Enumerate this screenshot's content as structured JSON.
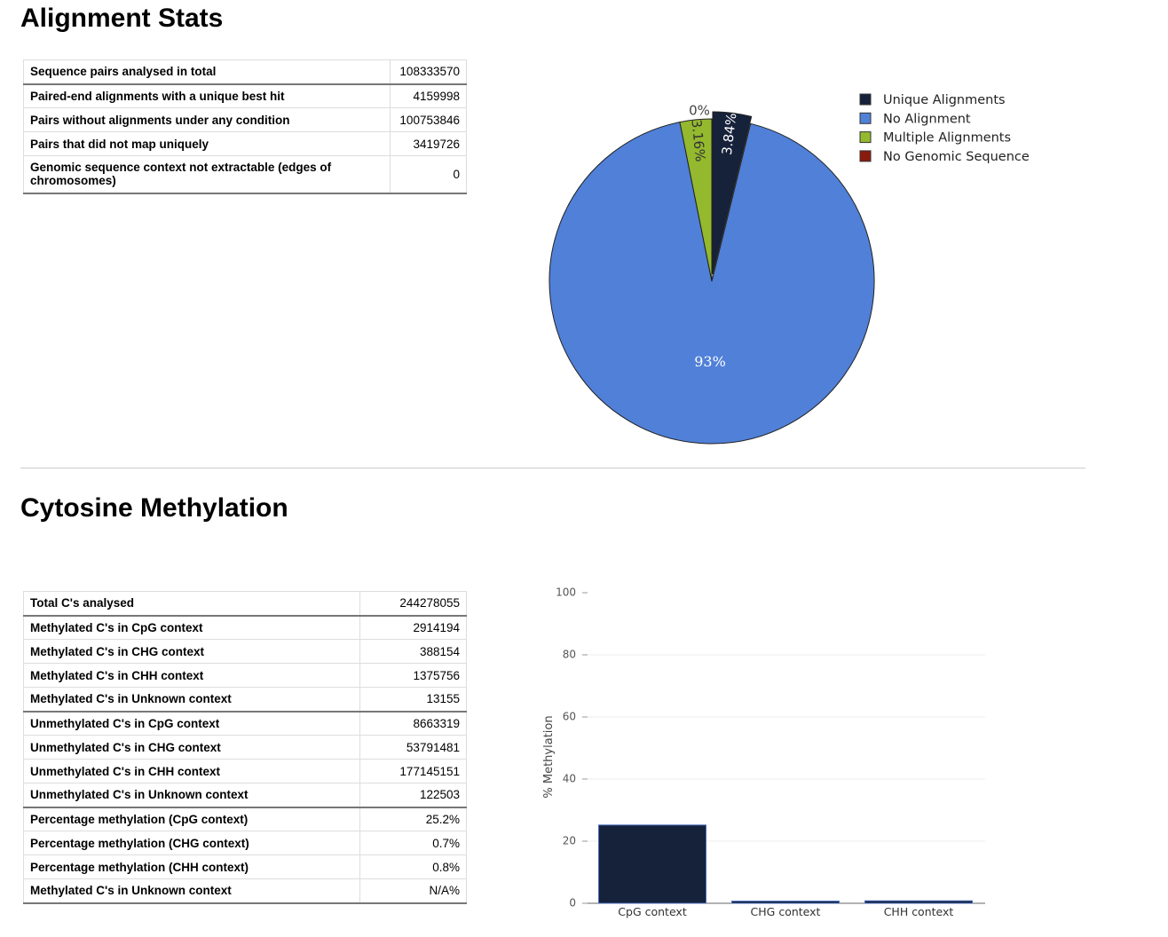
{
  "alignment": {
    "title": "Alignment Stats",
    "rows": [
      {
        "label": "Sequence pairs analysed in total",
        "value": "108333570"
      },
      {
        "label": "Paired-end alignments with a unique best hit",
        "value": "4159998"
      },
      {
        "label": "Pairs without alignments under any condition",
        "value": "100753846"
      },
      {
        "label": "Pairs that did not map uniquely",
        "value": "3419726"
      },
      {
        "label": "Genomic sequence context not extractable (edges of chromosomes)",
        "value": "0"
      }
    ]
  },
  "methylation": {
    "title": "Cytosine Methylation",
    "rows": [
      {
        "label": "Total C's analysed",
        "value": "244278055"
      },
      {
        "label": "Methylated C's in CpG context",
        "value": "2914194"
      },
      {
        "label": "Methylated C's in CHG context",
        "value": "388154"
      },
      {
        "label": "Methylated C's in CHH context",
        "value": "1375756"
      },
      {
        "label": "Methylated C's in Unknown context",
        "value": "13155"
      },
      {
        "label": "Unmethylated C's in CpG context",
        "value": "8663319"
      },
      {
        "label": "Unmethylated C's in CHG context",
        "value": "53791481"
      },
      {
        "label": "Unmethylated C's in CHH context",
        "value": "177145151"
      },
      {
        "label": "Unmethylated C's in Unknown context",
        "value": "122503"
      },
      {
        "label": "Percentage methylation (CpG context)",
        "value": "25.2%"
      },
      {
        "label": "Percentage methylation (CHG context)",
        "value": "0.7%"
      },
      {
        "label": "Percentage methylation (CHH context)",
        "value": "0.8%"
      },
      {
        "label": "Methylated C's in Unknown context",
        "value": "N/A%"
      }
    ]
  },
  "chart_data": [
    {
      "type": "pie",
      "title": "",
      "slices": [
        {
          "name": "Unique Alignments",
          "value": 4159998,
          "label": "3.84%",
          "color": "#16213a"
        },
        {
          "name": "No Alignment",
          "value": 100753846,
          "label": "93%",
          "color": "#5080d8"
        },
        {
          "name": "Multiple Alignments",
          "value": 3419726,
          "label": "3.16%",
          "color": "#94b92e"
        },
        {
          "name": "No Genomic Sequence",
          "value": 0,
          "label": "0%",
          "color": "#8b1a0e"
        }
      ],
      "legend": "top-right"
    },
    {
      "type": "bar",
      "title": "",
      "categories": [
        "CpG context",
        "CHG context",
        "CHH context"
      ],
      "values": [
        25.2,
        0.7,
        0.8
      ],
      "ylabel": "% Methylation",
      "xlabel": "",
      "ylim": [
        0,
        100
      ],
      "yticks": [
        "0",
        "20",
        "40",
        "60",
        "80",
        "100"
      ],
      "bar_color": "#16213a"
    }
  ]
}
